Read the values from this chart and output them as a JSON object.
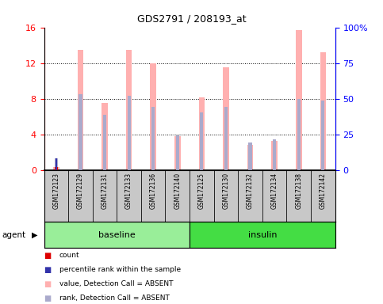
{
  "title": "GDS2791 / 208193_at",
  "samples": [
    "GSM172123",
    "GSM172129",
    "GSM172131",
    "GSM172133",
    "GSM172136",
    "GSM172140",
    "GSM172125",
    "GSM172130",
    "GSM172132",
    "GSM172134",
    "GSM172138",
    "GSM172142"
  ],
  "pink_values": [
    0.35,
    13.5,
    7.5,
    13.5,
    12.0,
    3.8,
    8.2,
    11.5,
    2.8,
    3.3,
    15.7,
    13.2
  ],
  "blue_dot_values": [
    1.3,
    8.5,
    6.2,
    8.3,
    7.1,
    3.9,
    6.5,
    7.1,
    3.15,
    3.5,
    8.0,
    7.8
  ],
  "has_red": [
    true,
    false,
    false,
    false,
    false,
    false,
    false,
    false,
    false,
    false,
    false,
    false
  ],
  "red_value": 0.35,
  "has_dark_blue": [
    true,
    false,
    false,
    false,
    false,
    false,
    false,
    false,
    false,
    false,
    false,
    false
  ],
  "dark_blue_value": 1.3,
  "ylim_left": [
    0,
    16
  ],
  "ylim_right": [
    0,
    100
  ],
  "yticks_left": [
    0,
    4,
    8,
    12,
    16
  ],
  "yticks_right": [
    0,
    25,
    50,
    75,
    100
  ],
  "ytick_labels_right": [
    "0",
    "25",
    "50",
    "75",
    "100%"
  ],
  "pink_color": "#FFB0B0",
  "blue_color": "#AAAACC",
  "red_color": "#DD0000",
  "dark_blue_color": "#3333AA",
  "bg_color": "#C8C8C8",
  "baseline_color": "#99EE99",
  "insulin_color": "#44DD44",
  "agent_label": "agent",
  "baseline_label": "baseline",
  "insulin_label": "insulin",
  "legend_items": [
    {
      "label": "count",
      "color": "#DD0000"
    },
    {
      "label": "percentile rank within the sample",
      "color": "#3333AA"
    },
    {
      "label": "value, Detection Call = ABSENT",
      "color": "#FFB0B0"
    },
    {
      "label": "rank, Detection Call = ABSENT",
      "color": "#AAAACC"
    }
  ]
}
